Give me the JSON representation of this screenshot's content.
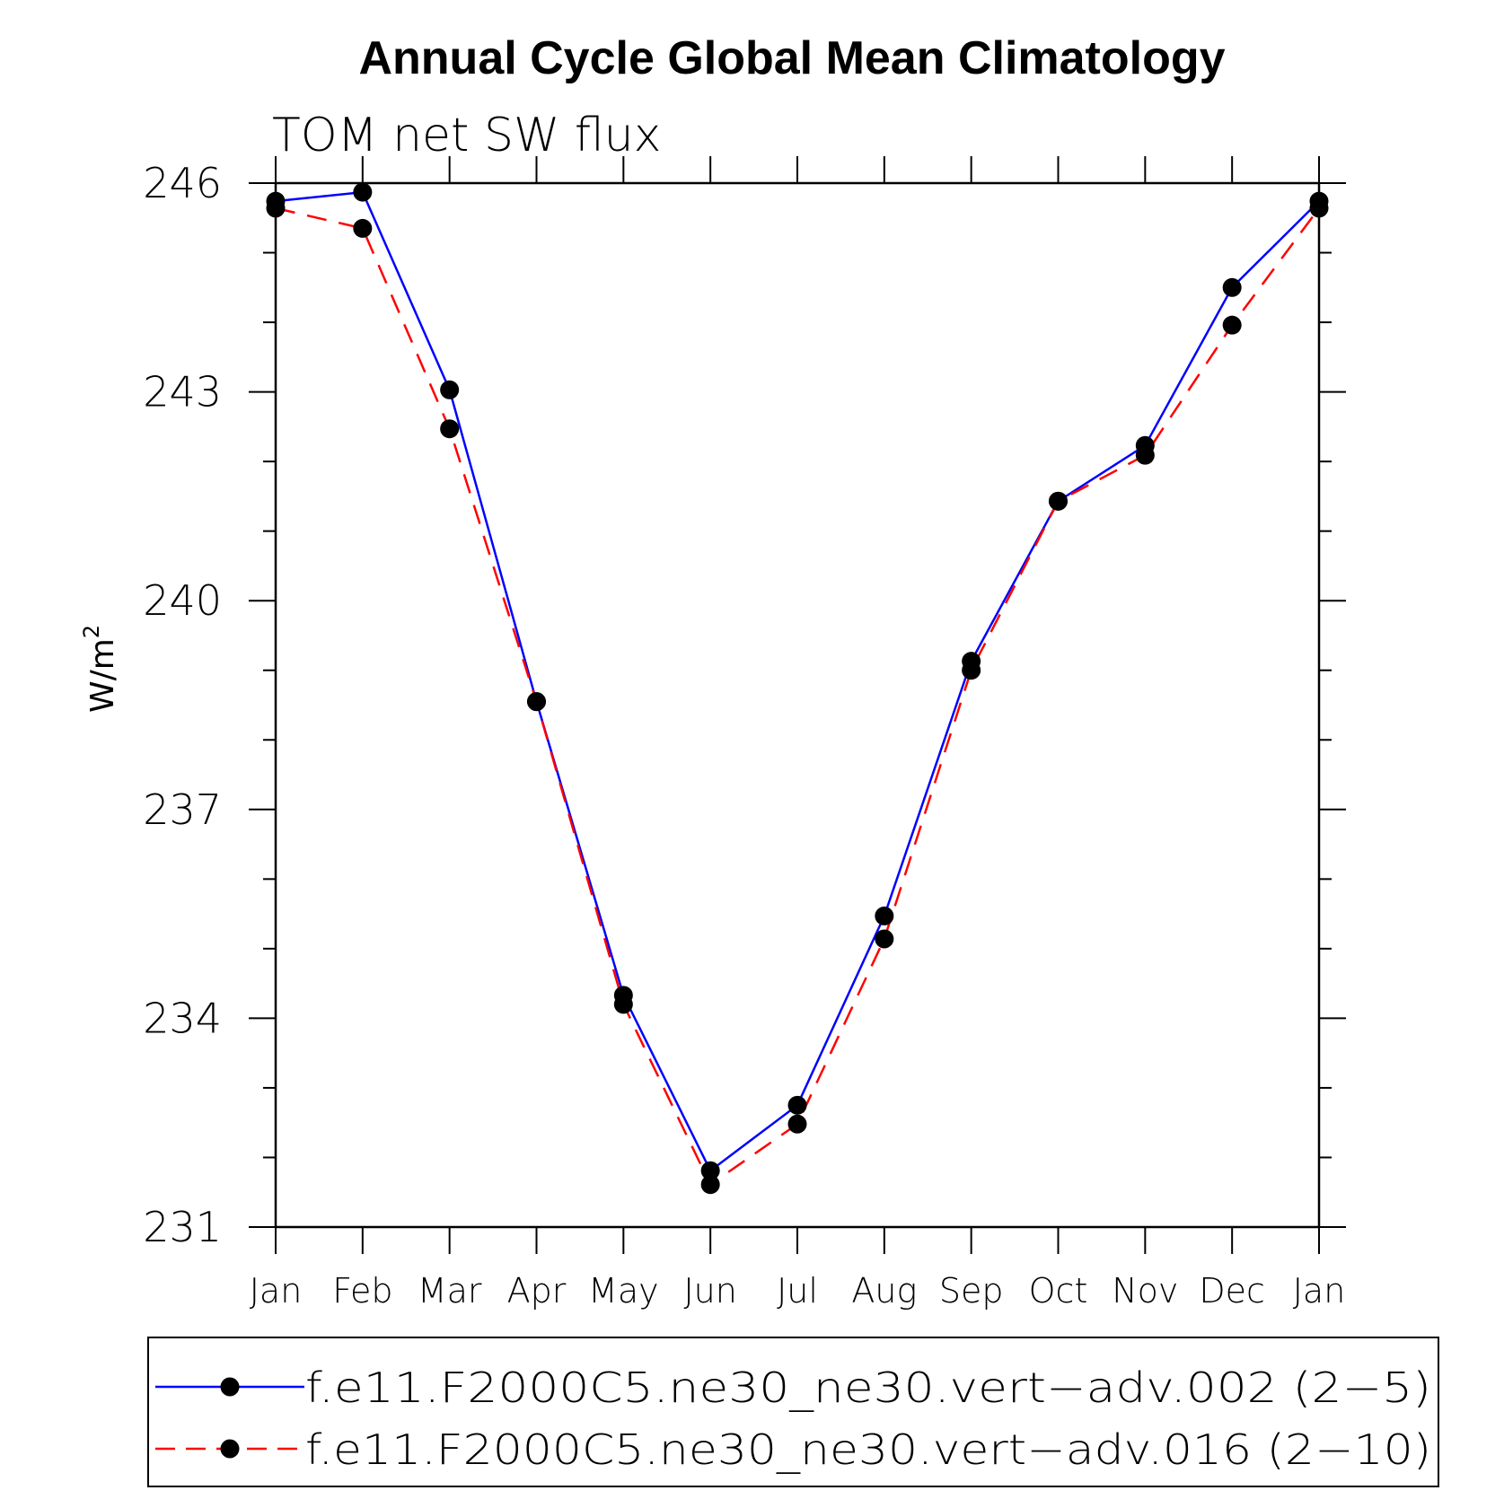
{
  "chart_data": {
    "type": "line",
    "title": "Annual Cycle Global Mean Climatology",
    "subtitle": "TOM net SW flux",
    "xlabel": "",
    "ylabel": "W/m",
    "ylabel_sup": "2",
    "categories": [
      "Jan",
      "Feb",
      "Mar",
      "Apr",
      "May",
      "Jun",
      "Jul",
      "Aug",
      "Sep",
      "Oct",
      "Nov",
      "Dec",
      "Jan"
    ],
    "ylim": [
      231,
      246
    ],
    "yticks": [
      "231",
      "234",
      "237",
      "240",
      "243",
      "246"
    ],
    "grid": false,
    "legend_position": "bottom",
    "series": [
      {
        "name": "f.e11.F2000C5.ne30_ne30.vert−adv.002 (2−5)",
        "color": "#0000ff",
        "line_style": "solid",
        "marker": "filled-circle",
        "values": [
          245.74,
          245.87,
          243.03,
          238.55,
          234.33,
          231.81,
          232.75,
          235.47,
          239.13,
          241.43,
          242.23,
          244.5,
          245.74
        ]
      },
      {
        "name": "f.e11.F2000C5.ne30_ne30.vert−adv.016 (2−10)",
        "color": "#ff0000",
        "line_style": "dashed",
        "marker": "filled-circle",
        "values": [
          245.64,
          245.35,
          242.47,
          238.55,
          234.2,
          231.61,
          232.48,
          235.14,
          239.0,
          241.43,
          242.09,
          243.96,
          245.64
        ]
      }
    ]
  }
}
